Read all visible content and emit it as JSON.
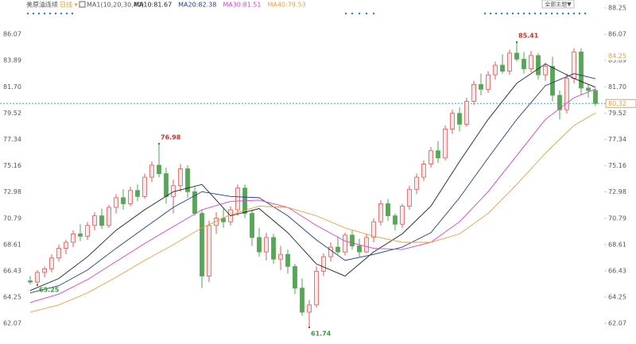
{
  "header": {
    "instrument": "美原油连续",
    "period": "日线 ▾",
    "indicator": "MA1(10,20,30,40)",
    "theme_button": "全部主题▼"
  },
  "chart_data": {
    "type": "candlestick",
    "up_color": "#e05a5a",
    "down_color": "#55a655",
    "ylim": [
      60.36,
      88.25
    ],
    "yticks": [
      88.25,
      86.07,
      83.89,
      {
        "value": 81.7,
        "label": "81.70"
      },
      79.52,
      77.34,
      75.16,
      72.98,
      70.79,
      68.61,
      66.43,
      64.25,
      62.07
    ],
    "reference_level": 84.25,
    "candles": [
      [
        65.6,
        66.0,
        65.3,
        65.5
      ],
      [
        65.5,
        66.5,
        65.25,
        66.3
      ],
      [
        66.3,
        66.8,
        65.9,
        66.6
      ],
      [
        66.6,
        67.8,
        66.3,
        67.5
      ],
      [
        67.5,
        68.6,
        67.2,
        68.3
      ],
      [
        68.3,
        69.0,
        67.8,
        68.8
      ],
      [
        68.8,
        69.8,
        68.4,
        69.5
      ],
      [
        69.5,
        70.3,
        68.9,
        69.3
      ],
      [
        69.3,
        70.5,
        69.0,
        70.2
      ],
      [
        70.2,
        71.3,
        69.8,
        71.0
      ],
      [
        71.0,
        71.6,
        69.9,
        70.2
      ],
      [
        70.2,
        71.9,
        70.0,
        71.7
      ],
      [
        71.7,
        72.8,
        71.2,
        72.5
      ],
      [
        72.5,
        73.2,
        71.5,
        72.0
      ],
      [
        72.0,
        73.4,
        71.8,
        73.1
      ],
      [
        73.1,
        73.6,
        72.2,
        72.6
      ],
      [
        72.6,
        74.5,
        72.4,
        74.2
      ],
      [
        74.2,
        75.5,
        73.8,
        75.2
      ],
      [
        75.2,
        76.98,
        74.2,
        74.5
      ],
      [
        74.5,
        75.0,
        72.0,
        72.6
      ],
      [
        72.6,
        74.0,
        71.2,
        73.5
      ],
      [
        73.5,
        75.3,
        73.0,
        74.9
      ],
      [
        74.9,
        75.2,
        72.5,
        73.0
      ],
      [
        73.0,
        73.4,
        71.0,
        71.2
      ],
      [
        71.2,
        71.5,
        65.0,
        66.0
      ],
      [
        66.0,
        70.6,
        65.5,
        70.2
      ],
      [
        70.2,
        71.3,
        69.5,
        70.8
      ],
      [
        70.8,
        71.6,
        70.0,
        70.5
      ],
      [
        70.5,
        71.8,
        70.2,
        71.5
      ],
      [
        71.5,
        73.6,
        71.0,
        73.3
      ],
      [
        73.3,
        73.6,
        70.8,
        71.2
      ],
      [
        71.2,
        71.5,
        68.5,
        69.2
      ],
      [
        69.2,
        70.0,
        67.6,
        68.0
      ],
      [
        68.0,
        69.6,
        67.3,
        69.2
      ],
      [
        69.2,
        69.5,
        67.0,
        67.4
      ],
      [
        67.4,
        68.5,
        66.5,
        67.8
      ],
      [
        67.8,
        68.2,
        66.2,
        66.8
      ],
      [
        66.8,
        67.0,
        64.5,
        65.0
      ],
      [
        65.0,
        65.8,
        62.7,
        63.0
      ],
      [
        63.0,
        64.0,
        61.74,
        63.6
      ],
      [
        63.6,
        66.8,
        63.4,
        66.4
      ],
      [
        66.4,
        67.9,
        66.0,
        67.6
      ],
      [
        67.6,
        68.8,
        67.2,
        68.4
      ],
      [
        68.4,
        69.3,
        67.8,
        68.0
      ],
      [
        68.0,
        69.6,
        67.7,
        69.4
      ],
      [
        69.4,
        69.8,
        68.2,
        68.5
      ],
      [
        68.5,
        69.1,
        67.6,
        68.0
      ],
      [
        68.0,
        69.5,
        67.9,
        69.2
      ],
      [
        69.2,
        70.8,
        68.8,
        70.5
      ],
      [
        70.5,
        72.3,
        70.2,
        72.0
      ],
      [
        72.0,
        72.4,
        70.6,
        71.0
      ],
      [
        71.0,
        71.2,
        69.8,
        70.3
      ],
      [
        70.3,
        72.0,
        70.0,
        71.8
      ],
      [
        71.8,
        73.5,
        71.5,
        73.2
      ],
      [
        73.2,
        74.5,
        72.8,
        74.2
      ],
      [
        74.2,
        75.6,
        73.9,
        75.3
      ],
      [
        75.3,
        76.7,
        75.0,
        76.4
      ],
      [
        76.4,
        77.2,
        75.4,
        75.8
      ],
      [
        75.8,
        78.5,
        75.6,
        78.2
      ],
      [
        78.2,
        79.8,
        77.8,
        79.5
      ],
      [
        79.5,
        80.0,
        78.0,
        78.6
      ],
      [
        78.6,
        80.8,
        78.4,
        80.5
      ],
      [
        80.5,
        82.2,
        80.2,
        81.9
      ],
      [
        81.9,
        82.8,
        81.0,
        81.5
      ],
      [
        81.5,
        83.0,
        81.2,
        82.7
      ],
      [
        82.7,
        83.8,
        82.3,
        83.5
      ],
      [
        83.5,
        84.4,
        82.8,
        83.0
      ],
      [
        83.0,
        84.8,
        82.7,
        84.5
      ],
      [
        84.5,
        85.41,
        83.8,
        84.0
      ],
      [
        84.0,
        84.6,
        82.8,
        83.2
      ],
      [
        83.2,
        84.7,
        82.9,
        84.3
      ],
      [
        84.3,
        84.5,
        82.3,
        82.7
      ],
      [
        82.7,
        83.7,
        82.2,
        83.4
      ],
      [
        83.4,
        84.2,
        80.5,
        81.0
      ],
      [
        81.0,
        81.4,
        79.0,
        79.8
      ],
      [
        79.8,
        82.8,
        79.5,
        82.4
      ],
      [
        82.4,
        84.9,
        82.0,
        84.6
      ],
      [
        84.6,
        84.9,
        81.0,
        81.6
      ],
      [
        81.6,
        81.9,
        80.8,
        81.4
      ],
      [
        81.4,
        81.6,
        80.1,
        80.32
      ]
    ],
    "ma_index": [
      0,
      4,
      8,
      12,
      16,
      20,
      24,
      28,
      32,
      36,
      40,
      44,
      48,
      52,
      56,
      60,
      64,
      68,
      72,
      76,
      79
    ],
    "series": [
      {
        "name": "MA10:81.67",
        "color": "#222222",
        "values": [
          64.8,
          65.8,
          67.6,
          69.8,
          71.5,
          73.0,
          73.6,
          71.0,
          71.6,
          69.6,
          67.0,
          66.0,
          68.0,
          69.5,
          71.8,
          75.5,
          79.0,
          82.0,
          83.6,
          82.4,
          81.67
        ]
      },
      {
        "name": "MA20:82.38",
        "color": "#1f3f8f",
        "values": [
          64.6,
          65.2,
          66.5,
          68.3,
          70.0,
          71.7,
          73.0,
          72.6,
          72.5,
          71.0,
          69.0,
          67.3,
          67.8,
          68.4,
          69.6,
          72.5,
          75.8,
          79.0,
          81.8,
          82.8,
          82.38
        ]
      },
      {
        "name": "MA30:81.51",
        "color": "#d63fd6",
        "values": [
          63.8,
          64.5,
          65.7,
          67.2,
          68.7,
          70.1,
          71.5,
          72.2,
          72.3,
          71.7,
          70.2,
          68.9,
          68.3,
          68.2,
          68.8,
          70.5,
          73.0,
          76.0,
          79.0,
          80.8,
          81.51
        ]
      },
      {
        "name": "MA40:79.53",
        "color": "#e8a040",
        "values": [
          63.0,
          63.6,
          64.6,
          65.9,
          67.3,
          68.6,
          70.0,
          71.1,
          71.8,
          71.7,
          71.0,
          70.0,
          69.3,
          68.8,
          68.8,
          69.5,
          71.2,
          73.6,
          76.2,
          78.5,
          79.53
        ]
      }
    ]
  }
}
